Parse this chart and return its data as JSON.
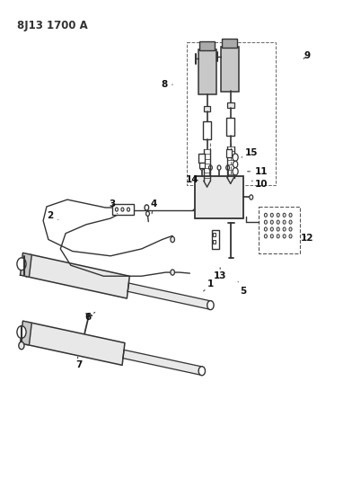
{
  "title": "8J13 1700 A",
  "bg_color": "#ffffff",
  "line_color": "#333333",
  "gray_fill": "#c8c8c8",
  "light_fill": "#e8e8e8",
  "figsize": [
    3.92,
    5.33
  ],
  "dpi": 100,
  "label_info": [
    [
      1,
      0.58,
      0.61,
      0.6,
      0.595
    ],
    [
      2,
      0.165,
      0.46,
      0.135,
      0.45
    ],
    [
      3,
      0.33,
      0.445,
      0.315,
      0.425
    ],
    [
      4,
      0.43,
      0.445,
      0.435,
      0.425
    ],
    [
      5,
      0.68,
      0.59,
      0.695,
      0.61
    ],
    [
      6,
      0.265,
      0.655,
      0.245,
      0.665
    ],
    [
      7,
      0.215,
      0.75,
      0.218,
      0.768
    ],
    [
      8,
      0.49,
      0.17,
      0.465,
      0.17
    ],
    [
      9,
      0.87,
      0.115,
      0.88,
      0.108
    ],
    [
      10,
      0.72,
      0.375,
      0.748,
      0.382
    ],
    [
      11,
      0.7,
      0.355,
      0.748,
      0.355
    ],
    [
      12,
      0.87,
      0.49,
      0.88,
      0.498
    ],
    [
      13,
      0.628,
      0.56,
      0.628,
      0.578
    ],
    [
      14,
      0.57,
      0.375,
      0.548,
      0.372
    ],
    [
      15,
      0.69,
      0.325,
      0.718,
      0.315
    ]
  ]
}
